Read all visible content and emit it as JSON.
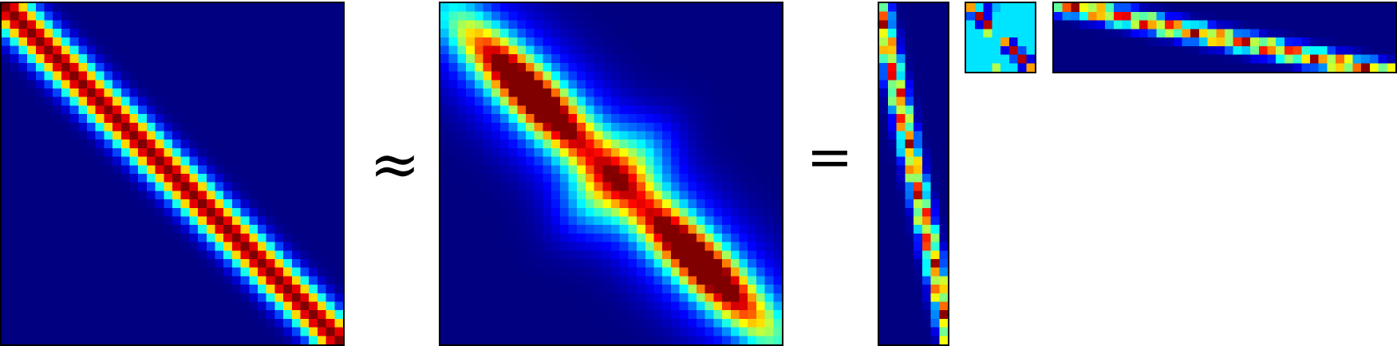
{
  "figure": {
    "colormap": "jet",
    "operators": {
      "approx": "≈",
      "equals": "="
    },
    "panels": [
      {
        "id": "target-matrix",
        "rows": 40,
        "cols": 40,
        "kind": "band",
        "sigma": 2.2
      },
      {
        "id": "approximation-matrix",
        "rows": 40,
        "cols": 40,
        "kind": "blocks"
      },
      {
        "id": "left-factor",
        "rows": 40,
        "cols": 8,
        "kind": "left-factor"
      },
      {
        "id": "core-matrix",
        "rows": 8,
        "cols": 8,
        "kind": "core"
      },
      {
        "id": "right-factor",
        "rows": 8,
        "cols": 40,
        "kind": "right-factor"
      }
    ]
  }
}
